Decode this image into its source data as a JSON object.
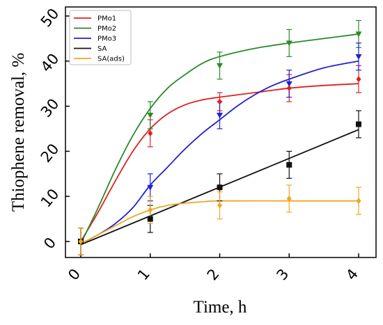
{
  "chart_data": {
    "type": "line",
    "title": "",
    "xlabel": "Time, h",
    "ylabel": "Thiophene  removal, %",
    "x_ticks": [
      "0",
      "1",
      "2",
      "3",
      "4"
    ],
    "y_ticks": [
      "0",
      "10",
      "20",
      "30",
      "40",
      "50"
    ],
    "xlim": [
      0,
      4
    ],
    "ylim": [
      -3,
      50
    ],
    "grid": false,
    "legend_position": "top-left",
    "series": [
      {
        "name": "PMo1",
        "color": "#e02020",
        "marker": "diamond",
        "x": [
          0,
          1,
          2,
          3,
          4
        ],
        "y": [
          0,
          24,
          31,
          34,
          36
        ],
        "err": [
          3,
          3,
          2,
          3,
          3
        ],
        "fit_x": [
          0,
          0.25,
          0.5,
          0.75,
          1,
          1.25,
          1.5,
          1.75,
          2,
          2.5,
          3,
          3.5,
          4
        ],
        "fit_y": [
          0,
          6.5,
          13.5,
          20,
          25,
          28.3,
          30.3,
          31.4,
          32,
          33,
          34,
          34.6,
          35
        ]
      },
      {
        "name": "PMo2",
        "color": "#2a8a2a",
        "marker": "triangle-down",
        "x": [
          0,
          1,
          2,
          3,
          4
        ],
        "y": [
          0,
          28,
          39,
          44,
          46
        ],
        "err": [
          3,
          3,
          3,
          3,
          3
        ],
        "fit_x": [
          0,
          0.25,
          0.5,
          0.75,
          1,
          1.25,
          1.5,
          1.75,
          2,
          2.5,
          3,
          3.5,
          4
        ],
        "fit_y": [
          -0.5,
          7.5,
          16,
          23.5,
          29.5,
          34,
          37,
          39.5,
          41,
          42.8,
          44,
          45,
          46
        ]
      },
      {
        "name": "PMo3",
        "color": "#2020d0",
        "marker": "triangle-down",
        "x": [
          0,
          1,
          2,
          3,
          4
        ],
        "y": [
          0,
          12,
          28,
          35,
          41
        ],
        "err": [
          3,
          3,
          3,
          3,
          3
        ],
        "fit_x": [
          0,
          0.25,
          0.5,
          0.75,
          1,
          1.25,
          1.5,
          1.75,
          2,
          2.25,
          2.5,
          2.75,
          3,
          3.5,
          4
        ],
        "fit_y": [
          -0.5,
          1.5,
          4,
          7.5,
          12.5,
          16.5,
          20.5,
          24,
          27,
          30,
          32.5,
          34.5,
          36,
          38.5,
          40
        ]
      },
      {
        "name": "SA",
        "color": "#111111",
        "marker": "square",
        "x": [
          0,
          1,
          2,
          3,
          4
        ],
        "y": [
          0,
          5,
          12,
          17,
          26
        ],
        "err": [
          3,
          3,
          3,
          3,
          3
        ],
        "fit_x": [
          0,
          4
        ],
        "fit_y": [
          -0.7,
          24.8
        ]
      },
      {
        "name": "SA(ads)",
        "color": "#f0a820",
        "marker": "diamond",
        "x": [
          0,
          1,
          2,
          3,
          4
        ],
        "y": [
          0,
          7,
          8,
          9.5,
          9
        ],
        "err": [
          3,
          3,
          3,
          3,
          3
        ],
        "fit_x": [
          0,
          0.25,
          0.5,
          0.75,
          1,
          1.25,
          1.5,
          1.75,
          2,
          3,
          4
        ],
        "fit_y": [
          -0.5,
          1.5,
          3.5,
          5.5,
          7,
          8,
          8.5,
          8.8,
          9,
          9,
          9
        ]
      }
    ]
  }
}
